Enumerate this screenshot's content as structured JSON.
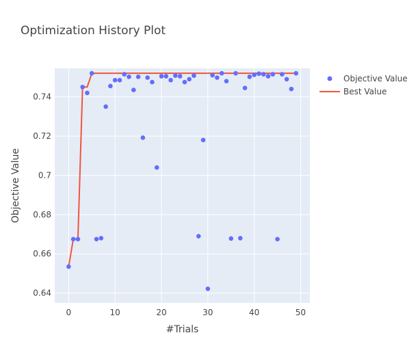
{
  "chart_data": {
    "type": "scatter",
    "title": "Optimization History Plot",
    "xlabel": "#Trials",
    "ylabel": "Objective Value",
    "xlim": [
      -3,
      52
    ],
    "ylim": [
      0.635,
      0.7545
    ],
    "xticks": [
      0,
      10,
      20,
      30,
      40,
      50
    ],
    "yticks": [
      0.64,
      0.66,
      0.68,
      0.7,
      0.72,
      0.74
    ],
    "ytick_labels": [
      "0.64",
      "0.66",
      "0.68",
      "0.7",
      "0.72",
      "0.74"
    ],
    "grid": true,
    "legend_position": "top-right",
    "colors": {
      "plot_background": "#e5ecf6",
      "grid": "#ffffff",
      "objective": "#636efa",
      "best": "#ef553b"
    },
    "series": [
      {
        "name": "Objective Value",
        "mode": "markers",
        "x": [
          0,
          1,
          2,
          3,
          4,
          5,
          6,
          7,
          8,
          9,
          10,
          11,
          12,
          13,
          14,
          15,
          16,
          17,
          18,
          19,
          20,
          21,
          22,
          23,
          24,
          25,
          26,
          27,
          28,
          29,
          30,
          31,
          32,
          33,
          34,
          35,
          36,
          37,
          38,
          39,
          40,
          41,
          42,
          43,
          44,
          45,
          46,
          47,
          48,
          49
        ],
        "y": [
          0.6535,
          0.6675,
          0.6675,
          0.745,
          0.742,
          0.752,
          0.6675,
          0.668,
          0.735,
          0.7455,
          0.7485,
          0.7485,
          0.7515,
          0.7502,
          0.7435,
          0.7502,
          0.7192,
          0.7498,
          0.7475,
          0.704,
          0.7505,
          0.7505,
          0.7485,
          0.7508,
          0.7505,
          0.7475,
          0.749,
          0.7508,
          0.669,
          0.718,
          0.6422,
          0.751,
          0.7498,
          0.752,
          0.748,
          0.6678,
          0.752,
          0.668,
          0.7445,
          0.7502,
          0.7512,
          0.7518,
          0.7515,
          0.7505,
          0.7515,
          0.6675,
          0.7515,
          0.749,
          0.744,
          0.752
        ]
      },
      {
        "name": "Best Value",
        "mode": "lines",
        "x": [
          0,
          1,
          2,
          3,
          4,
          5,
          6,
          7,
          8,
          9,
          10,
          11,
          12,
          13,
          14,
          15,
          16,
          17,
          18,
          19,
          20,
          21,
          22,
          23,
          24,
          25,
          26,
          27,
          28,
          29,
          30,
          31,
          32,
          33,
          34,
          35,
          36,
          37,
          38,
          39,
          40,
          41,
          42,
          43,
          44,
          45,
          46,
          47,
          48,
          49
        ],
        "y": [
          0.6535,
          0.6675,
          0.6675,
          0.745,
          0.745,
          0.752,
          0.752,
          0.752,
          0.752,
          0.752,
          0.752,
          0.752,
          0.752,
          0.752,
          0.752,
          0.752,
          0.752,
          0.752,
          0.752,
          0.752,
          0.752,
          0.752,
          0.752,
          0.752,
          0.752,
          0.752,
          0.752,
          0.752,
          0.752,
          0.752,
          0.752,
          0.752,
          0.752,
          0.752,
          0.752,
          0.752,
          0.752,
          0.752,
          0.752,
          0.752,
          0.752,
          0.752,
          0.752,
          0.752,
          0.752,
          0.752,
          0.752,
          0.752,
          0.752,
          0.752
        ]
      }
    ]
  }
}
